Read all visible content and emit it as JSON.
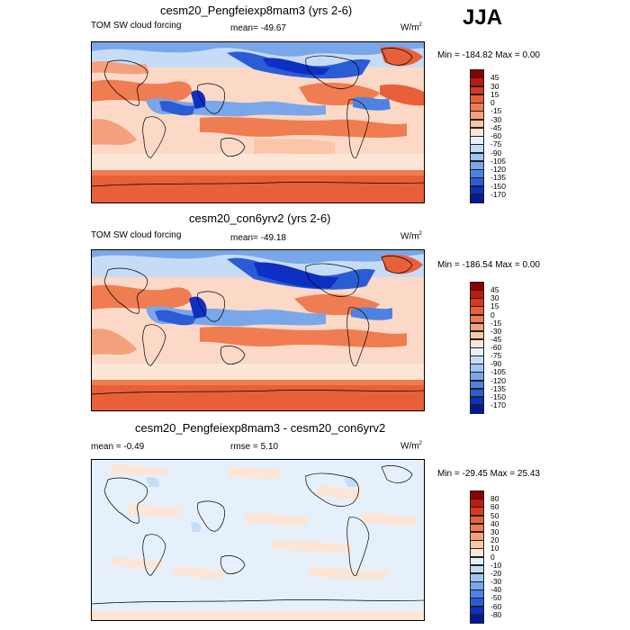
{
  "season": "JJA",
  "panels": [
    {
      "title": "cesm20_Pengfeiexp8mam3 (yrs 2-6)",
      "left_label": "TOM SW cloud forcing",
      "center_label": "mean= -49.67",
      "units": "W/m",
      "units_sup": "2",
      "minmax": "Min = -184.82 Max =   0.00",
      "colorbar": {
        "labels": [
          "45",
          "30",
          "15",
          "0",
          "-15",
          "-30",
          "-45",
          "-60",
          "-75",
          "-90",
          "-105",
          "-120",
          "-135",
          "-150",
          "-170"
        ],
        "colors": [
          "#8b0000",
          "#b81d0f",
          "#d63a1e",
          "#e8603a",
          "#f07c52",
          "#f5a07c",
          "#f9c6a8",
          "#fde6d6",
          "#e6f0fb",
          "#c6dcf6",
          "#a2c4f0",
          "#7aa6ea",
          "#4f82e0",
          "#2a5cd6",
          "#0d2fc4",
          "#001a9a"
        ]
      }
    },
    {
      "title": "cesm20_con6yrv2 (yrs 2-6)",
      "left_label": "TOM SW cloud forcing",
      "center_label": "mean= -49.18",
      "units": "W/m",
      "units_sup": "2",
      "minmax": "Min = -186.54 Max =   0.00",
      "colorbar": {
        "labels": [
          "45",
          "30",
          "15",
          "0",
          "-15",
          "-30",
          "-45",
          "-60",
          "-75",
          "-90",
          "-105",
          "-120",
          "-135",
          "-150",
          "-170"
        ],
        "colors": [
          "#8b0000",
          "#b81d0f",
          "#d63a1e",
          "#e8603a",
          "#f07c52",
          "#f5a07c",
          "#f9c6a8",
          "#fde6d6",
          "#e6f0fb",
          "#c6dcf6",
          "#a2c4f0",
          "#7aa6ea",
          "#4f82e0",
          "#2a5cd6",
          "#0d2fc4",
          "#001a9a"
        ]
      }
    },
    {
      "title": "cesm20_Pengfeiexp8mam3 - cesm20_con6yrv2",
      "left_label": "mean =  -0.49",
      "center_label": "rmse =   5.10",
      "units": "W/m",
      "units_sup": "2",
      "minmax": "Min = -29.45 Max =  25.43",
      "colorbar": {
        "labels": [
          "80",
          "60",
          "50",
          "40",
          "30",
          "20",
          "10",
          "0",
          "-10",
          "-20",
          "-30",
          "-40",
          "-50",
          "-60",
          "-80"
        ],
        "colors": [
          "#8b0000",
          "#b81d0f",
          "#d63a1e",
          "#e8603a",
          "#f07c52",
          "#f5a07c",
          "#f9c6a8",
          "#fde6d6",
          "#e6f0fb",
          "#c6dcf6",
          "#a2c4f0",
          "#7aa6ea",
          "#4f82e0",
          "#2a5cd6",
          "#0d2fc4",
          "#001a9a"
        ]
      }
    }
  ],
  "chart_data": [
    {
      "type": "heatmap",
      "title": "cesm20_Pengfeiexp8mam3 (yrs 2-6)",
      "variable": "TOM SW cloud forcing",
      "units": "W/m2",
      "season": "JJA",
      "mean": -49.67,
      "min": -184.82,
      "max": 0.0,
      "contour_levels": [
        45,
        30,
        15,
        0,
        -15,
        -30,
        -45,
        -60,
        -75,
        -90,
        -105,
        -120,
        -135,
        -150,
        -170
      ]
    },
    {
      "type": "heatmap",
      "title": "cesm20_con6yrv2 (yrs 2-6)",
      "variable": "TOM SW cloud forcing",
      "units": "W/m2",
      "season": "JJA",
      "mean": -49.18,
      "min": -186.54,
      "max": 0.0,
      "contour_levels": [
        45,
        30,
        15,
        0,
        -15,
        -30,
        -45,
        -60,
        -75,
        -90,
        -105,
        -120,
        -135,
        -150,
        -170
      ]
    },
    {
      "type": "heatmap",
      "title": "cesm20_Pengfeiexp8mam3 - cesm20_con6yrv2",
      "units": "W/m2",
      "season": "JJA",
      "mean": -0.49,
      "rmse": 5.1,
      "min": -29.45,
      "max": 25.43,
      "contour_levels": [
        80,
        60,
        50,
        40,
        30,
        20,
        10,
        0,
        -10,
        -20,
        -30,
        -40,
        -50,
        -60,
        -80
      ]
    }
  ]
}
